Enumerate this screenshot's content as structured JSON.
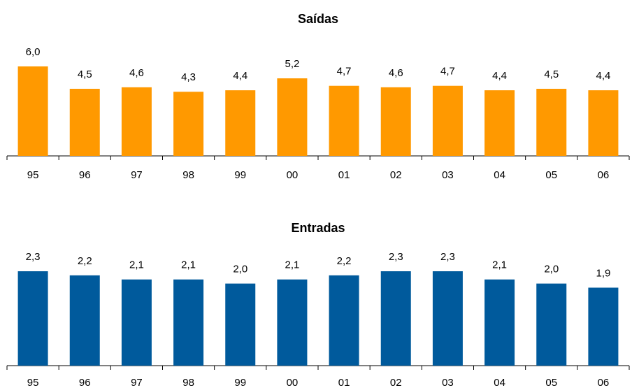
{
  "chart_data": [
    {
      "type": "bar",
      "title": "Saídas",
      "categories": [
        "95",
        "96",
        "97",
        "98",
        "99",
        "00",
        "01",
        "02",
        "03",
        "04",
        "05",
        "06"
      ],
      "values": [
        6.0,
        4.5,
        4.6,
        4.3,
        4.4,
        5.2,
        4.7,
        4.6,
        4.7,
        4.4,
        4.5,
        4.4
      ],
      "value_labels": [
        "6,0",
        "4,5",
        "4,6",
        "4,3",
        "4,4",
        "5,2",
        "4,7",
        "4,6",
        "4,7",
        "4,4",
        "4,5",
        "4,4"
      ],
      "color": "#ff9900"
    },
    {
      "type": "bar",
      "title": "Entradas",
      "categories": [
        "95",
        "96",
        "97",
        "98",
        "99",
        "00",
        "01",
        "02",
        "03",
        "04",
        "05",
        "06"
      ],
      "values": [
        2.3,
        2.2,
        2.1,
        2.1,
        2.0,
        2.1,
        2.2,
        2.3,
        2.3,
        2.1,
        2.0,
        1.9
      ],
      "value_labels": [
        "2,3",
        "2,2",
        "2,1",
        "2,1",
        "2,0",
        "2,1",
        "2,2",
        "2,3",
        "2,3",
        "2,1",
        "2,0",
        "1,9"
      ],
      "color": "#005a9c"
    }
  ]
}
